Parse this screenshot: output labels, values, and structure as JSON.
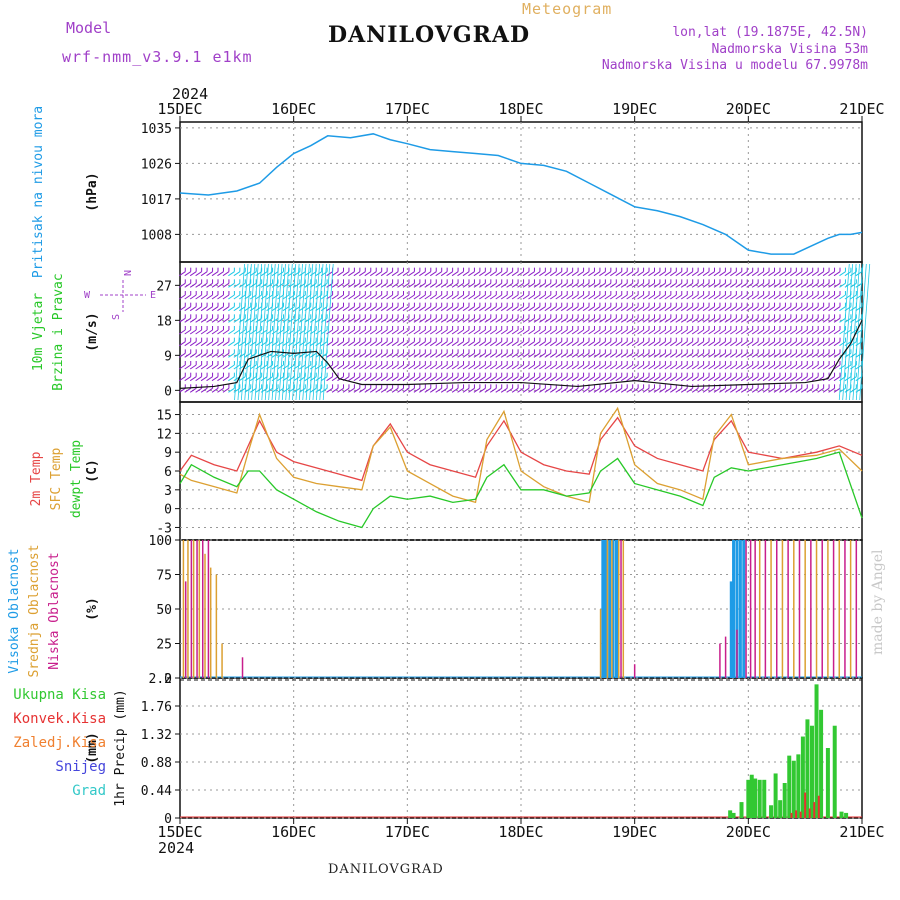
{
  "header": {
    "model_label": "Model",
    "model_name": "wrf-nmm_v3.9.1 e1km",
    "meteogram_label": "Meteogram",
    "station": "DANILOVGRAD",
    "lonlat": "lon,lat (19.1875E, 42.5N)",
    "elevation": "Nadmorska Visina 53m",
    "model_elevation": "Nadmorska Visina u modelu 67.9978m",
    "made_by": "made by Angel"
  },
  "footer": {
    "station": "DANILOVGRAD"
  },
  "colors": {
    "pressure": "#1e9be6",
    "wind_speed": "#111111",
    "wind_barbs": "#8c1ec8",
    "wind_strong": "#1ec8e6",
    "temp_2m": "#e64646",
    "temp_sfc": "#dca032",
    "dewpoint": "#28c828",
    "cloud_high": "#1e9be6",
    "cloud_mid": "#dca032",
    "cloud_low": "#c81e8c",
    "precip_total": "#32c832",
    "precip_conv": "#e63232",
    "precip_frz": "#f08030",
    "snow": "#4646dc",
    "hail": "#32c8c8",
    "label_pressure": "#1e9be6",
    "label_wind": "#28c828",
    "label_violet": "#a040c8"
  },
  "chart_data": [
    {
      "type": "line",
      "id": "pressure",
      "top_year": "2024",
      "x_ticks": [
        "15DEC",
        "16DEC",
        "17DEC",
        "18DEC",
        "19DEC",
        "20DEC",
        "21DEC"
      ],
      "ylabel": "Pritisak na nivou mora",
      "unit": "(hPa)",
      "y_ticks": [
        1008,
        1017,
        1026,
        1035
      ],
      "ylim": [
        1001,
        1036.5
      ],
      "x": [
        0,
        0.25,
        0.5,
        0.7,
        0.85,
        1.0,
        1.15,
        1.3,
        1.5,
        1.7,
        1.85,
        2.0,
        2.2,
        2.4,
        2.6,
        2.8,
        3.0,
        3.2,
        3.4,
        3.6,
        3.8,
        4.0,
        4.2,
        4.4,
        4.6,
        4.8,
        5.0,
        5.2,
        5.4,
        5.55,
        5.7,
        5.8,
        5.9,
        6.0
      ],
      "y": [
        1018.5,
        1018,
        1019,
        1021,
        1025,
        1028.5,
        1030.5,
        1033,
        1032.5,
        1033.5,
        1032,
        1031,
        1029.5,
        1029,
        1028.5,
        1028,
        1026,
        1025.5,
        1024,
        1021,
        1018,
        1015,
        1014,
        1012.5,
        1010.5,
        1008,
        1004,
        1003,
        1003,
        1005,
        1007,
        1008,
        1008,
        1008.5
      ],
      "series": [
        {
          "name": "Pritisak na nivou mora",
          "color": "#1e9be6"
        }
      ]
    },
    {
      "type": "line",
      "id": "wind",
      "ylabel": [
        "10m Vjetar",
        "Brzina i Pravac"
      ],
      "unit": "(m/s)",
      "y_ticks": [
        0,
        9,
        18,
        27
      ],
      "ylim": [
        -3,
        33
      ],
      "compass": {
        "n": "N",
        "w": "W",
        "e": "E",
        "s": "S"
      },
      "x": [
        0,
        0.3,
        0.5,
        0.6,
        0.8,
        1.0,
        1.2,
        1.3,
        1.4,
        1.6,
        2.0,
        2.5,
        3.0,
        3.5,
        4.0,
        4.5,
        5.0,
        5.5,
        5.7,
        5.8,
        5.9,
        6.0
      ],
      "y": [
        0.5,
        1,
        2,
        8,
        10,
        9.5,
        10,
        7,
        3,
        1.5,
        1.5,
        2,
        2,
        1,
        2.5,
        1,
        1.5,
        2,
        3,
        8,
        12,
        18
      ],
      "series": [
        {
          "name": "Brzina",
          "color": "#111111"
        }
      ]
    },
    {
      "type": "line",
      "id": "temperature",
      "ylabel": [
        "2m Temp",
        "SFC Temp",
        "dewpt Temp"
      ],
      "unit": "(C)",
      "y_ticks": [
        -3,
        0,
        3,
        6,
        9,
        12,
        15
      ],
      "ylim": [
        -5,
        17
      ],
      "x": [
        0,
        0.1,
        0.3,
        0.5,
        0.6,
        0.7,
        0.85,
        1.0,
        1.2,
        1.4,
        1.6,
        1.7,
        1.85,
        2.0,
        2.2,
        2.4,
        2.6,
        2.7,
        2.85,
        3.0,
        3.2,
        3.4,
        3.6,
        3.7,
        3.85,
        4.0,
        4.2,
        4.4,
        4.6,
        4.7,
        4.85,
        5.0,
        5.3,
        5.6,
        5.8,
        6.0
      ],
      "series": [
        {
          "name": "2m Temp",
          "color": "#e64646",
          "values": [
            6,
            8.5,
            7,
            6,
            10,
            14,
            9,
            7.5,
            6.5,
            5.5,
            4.5,
            10,
            13.5,
            9,
            7,
            6,
            5,
            10,
            14,
            9,
            7,
            6,
            5.5,
            11,
            14.5,
            10,
            8,
            7,
            6,
            11,
            14,
            9,
            8,
            9,
            10,
            8.5
          ]
        },
        {
          "name": "SFC Temp",
          "color": "#dca032",
          "values": [
            5.5,
            4.5,
            3.5,
            2.5,
            9,
            15,
            8,
            5,
            4,
            3.5,
            3,
            10,
            13,
            6,
            4,
            2,
            1,
            11,
            15.5,
            6,
            3.5,
            2,
            1,
            12,
            16,
            7,
            4,
            3,
            1.5,
            11.5,
            15,
            7,
            8,
            8.5,
            9.5,
            6
          ]
        },
        {
          "name": "dewpt Temp",
          "color": "#28c828",
          "values": [
            4,
            7,
            5,
            3.5,
            6,
            6,
            3,
            1.5,
            -0.5,
            -2,
            -3,
            0,
            2,
            1.5,
            2,
            1,
            1.5,
            5,
            7,
            3,
            3,
            2,
            2.5,
            6,
            8,
            4,
            3,
            2,
            0.5,
            5,
            6.5,
            6,
            7,
            8,
            9,
            -1.5
          ]
        }
      ]
    },
    {
      "type": "bar",
      "id": "cloud",
      "ylabel": [
        "Visoka Oblacnost",
        "Srednja Oblacnost",
        "Niska Oblacnost"
      ],
      "unit": "(%)",
      "y_ticks": [
        0,
        25,
        50,
        75,
        100
      ],
      "ylim": [
        0,
        100
      ],
      "series": [
        {
          "name": "Visoka Oblacnost",
          "color": "#1e9be6",
          "x": [
            3.72,
            3.73,
            3.75,
            3.78,
            3.81,
            3.84,
            4.85,
            4.87,
            4.9,
            4.93,
            4.96
          ],
          "values": [
            100,
            100,
            100,
            100,
            100,
            100,
            70,
            100,
            100,
            100,
            100
          ]
        },
        {
          "name": "Srednja Oblacnost",
          "color": "#dca032",
          "x": [
            0.03,
            0.07,
            0.12,
            0.17,
            0.22,
            0.27,
            0.32,
            0.37,
            3.7,
            3.76,
            3.8,
            3.86,
            3.9,
            5.1,
            5.2,
            5.3,
            5.4,
            5.5,
            5.6,
            5.7,
            5.8,
            5.9
          ],
          "values": [
            100,
            100,
            100,
            100,
            90,
            80,
            75,
            25,
            50,
            100,
            100,
            100,
            100,
            100,
            100,
            100,
            100,
            100,
            100,
            100,
            100,
            100
          ]
        },
        {
          "name": "Niska Oblacnost",
          "color": "#c81e8c",
          "x": [
            0.05,
            0.1,
            0.15,
            0.2,
            0.25,
            0.55,
            3.88,
            4.0,
            4.75,
            4.8,
            4.9,
            4.98,
            5.02,
            5.06,
            5.15,
            5.25,
            5.35,
            5.45,
            5.55,
            5.65,
            5.75,
            5.85,
            5.95
          ],
          "values": [
            70,
            100,
            100,
            100,
            100,
            15,
            100,
            10,
            25,
            30,
            35,
            100,
            100,
            100,
            100,
            100,
            100,
            100,
            100,
            100,
            100,
            100,
            100
          ]
        }
      ]
    },
    {
      "type": "bar",
      "id": "precip",
      "ylabel": "1hr Precip",
      "unit": "(mm)",
      "y_ticks": [
        0,
        0.44,
        0.88,
        1.32,
        1.76,
        2.2
      ],
      "ylim": [
        0,
        2.2
      ],
      "legend": [
        "Ukupna Kisa",
        "Konvek.Kisa",
        "Zaledj.Kisa",
        "Snijeg",
        "Grad"
      ],
      "bottom_ticks": [
        "15DEC",
        "16DEC",
        "17DEC",
        "18DEC",
        "19DEC",
        "20DEC",
        "21DEC"
      ],
      "bottom_year": "2024",
      "series": [
        {
          "name": "Ukupna Kisa",
          "color": "#32c832",
          "x": [
            4.84,
            4.87,
            4.94,
            5.0,
            5.03,
            5.06,
            5.1,
            5.14,
            5.2,
            5.24,
            5.28,
            5.32,
            5.36,
            5.4,
            5.44,
            5.48,
            5.52,
            5.56,
            5.6,
            5.64,
            5.7,
            5.76,
            5.82,
            5.86
          ],
          "values": [
            0.12,
            0.08,
            0.25,
            0.6,
            0.68,
            0.62,
            0.6,
            0.6,
            0.2,
            0.7,
            0.28,
            0.55,
            0.98,
            0.9,
            1.0,
            1.28,
            1.55,
            1.45,
            2.1,
            1.7,
            1.1,
            1.45,
            0.1,
            0.08
          ]
        },
        {
          "name": "Konvek.Kisa",
          "color": "#e63232",
          "x": [
            5.38,
            5.42,
            5.46,
            5.5,
            5.54,
            5.58,
            5.62
          ],
          "values": [
            0.08,
            0.12,
            0.1,
            0.4,
            0.15,
            0.25,
            0.35
          ]
        },
        {
          "name": "Zaledj.Kisa",
          "color": "#f08030",
          "x": [],
          "values": []
        },
        {
          "name": "Snijeg",
          "color": "#4646dc",
          "x": [],
          "values": []
        },
        {
          "name": "Grad",
          "color": "#32c8c8",
          "x": [],
          "values": []
        }
      ]
    }
  ]
}
